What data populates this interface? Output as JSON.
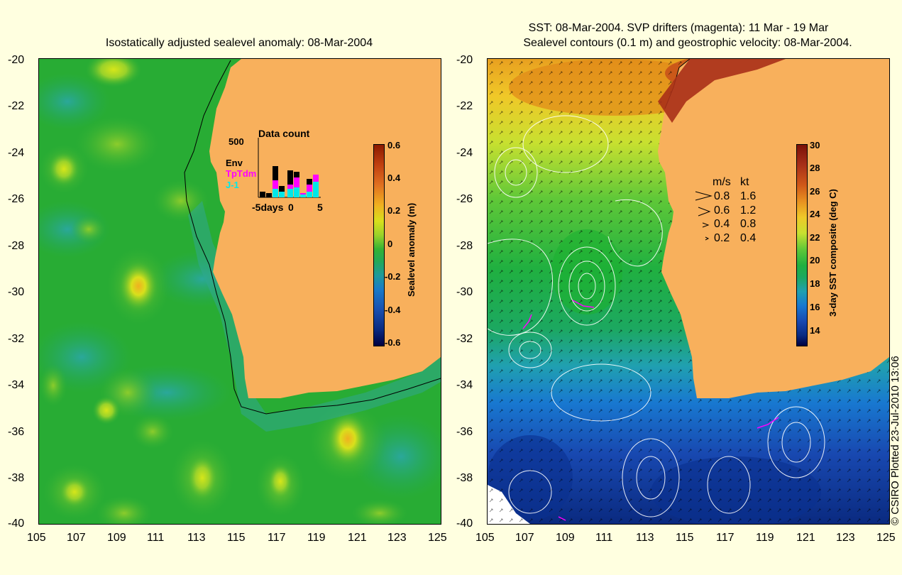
{
  "left_panel": {
    "title": "Isostatically adjusted sealevel anomaly: 08-Mar-2004",
    "y_ticks": [
      "-20",
      "-22",
      "-24",
      "-26",
      "-28",
      "-30",
      "-32",
      "-34",
      "-36",
      "-38",
      "-40"
    ],
    "x_ticks": [
      "105",
      "107",
      "109",
      "111",
      "113",
      "115",
      "117",
      "119",
      "121",
      "123",
      "125"
    ],
    "colorbar": {
      "label": "Sealevel anomaly (m)",
      "ticks": [
        "0.6",
        "0.4",
        "0.2",
        "0",
        "-0.2",
        "-0.4",
        "-0.6"
      ]
    },
    "inset": {
      "title": "Data count",
      "ymax_label": "500",
      "series": [
        {
          "name": "Env",
          "color": "#000000"
        },
        {
          "name": "TpTdm",
          "color": "#ff00ff"
        },
        {
          "name": "J-1",
          "color": "#00ffff"
        }
      ],
      "x_labels": [
        "-5days",
        "0",
        "5"
      ]
    }
  },
  "right_panel": {
    "title_line1": "SST: 08-Mar-2004. SVP drifters (magenta): 11 Mar - 19 Mar",
    "title_line2": "Sealevel contours (0.1 m) and geostrophic velocity: 08-Mar-2004.",
    "y_ticks": [
      "-20",
      "-22",
      "-24",
      "-26",
      "-28",
      "-30",
      "-32",
      "-34",
      "-36",
      "-38",
      "-40"
    ],
    "x_ticks": [
      "105",
      "107",
      "109",
      "111",
      "113",
      "115",
      "117",
      "119",
      "121",
      "123",
      "125"
    ],
    "colorbar": {
      "label": "3-day SST composite (deg C)",
      "ticks": [
        "30",
        "28",
        "26",
        "24",
        "22",
        "20",
        "18",
        "16",
        "14"
      ]
    },
    "velocity_legend": {
      "header_ms": "m/s",
      "header_kt": "kt",
      "rows": [
        {
          "ms": "0.8",
          "kt": "1.6"
        },
        {
          "ms": "0.6",
          "kt": "1.2"
        },
        {
          "ms": "0.4",
          "kt": "0.8"
        },
        {
          "ms": "0.2",
          "kt": "0.4"
        }
      ]
    }
  },
  "credit": "© CSIRO Plotted 23-Jul-2010 13:06",
  "colors": {
    "background": "#ffffe0",
    "land": "#f8b05c",
    "sla_base": "#22b022",
    "drifter": "#ff00ff"
  }
}
